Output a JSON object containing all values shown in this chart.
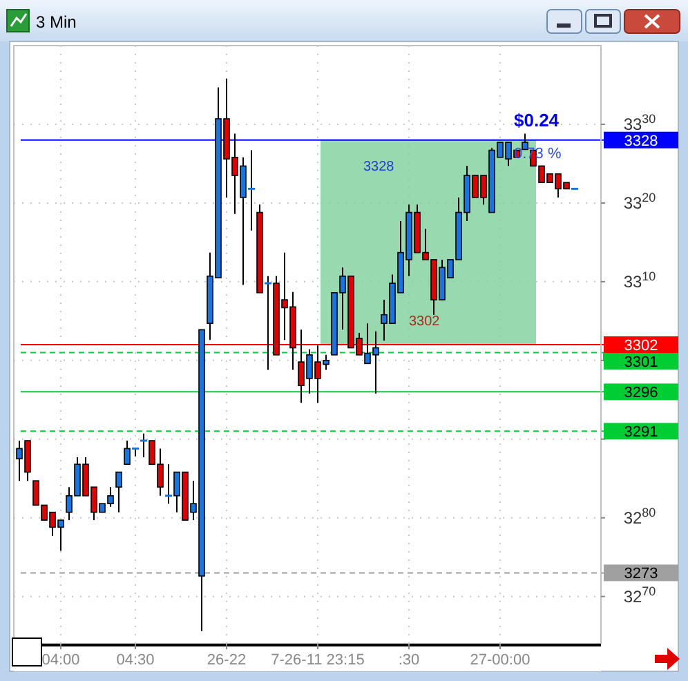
{
  "chart_data": {
    "type": "candlestick",
    "title": "3 Min",
    "categories": [
      null,
      null,
      null,
      null,
      null,
      "04:00",
      null,
      null,
      null,
      null,
      null,
      null,
      null,
      null,
      "04:30",
      null,
      null,
      null,
      null,
      null,
      null,
      null,
      null,
      null,
      null,
      "26-22",
      null,
      null,
      null,
      null,
      null,
      null,
      null,
      null,
      null,
      null,
      "7-26-11 23:15",
      null,
      null,
      null,
      null,
      null,
      null,
      null,
      null,
      null,
      null,
      ":30",
      null,
      null,
      null,
      null,
      null,
      null,
      null,
      null,
      null,
      null,
      "27-00:00",
      null,
      null,
      null,
      null,
      null,
      null,
      null,
      null,
      null
    ],
    "ohlc": [
      [
        3287.5,
        3289.8,
        3284.7,
        3288.8
      ],
      [
        3289.8,
        3289.8,
        3284.7,
        3285.8
      ],
      [
        3284.7,
        3284.7,
        3281.6,
        3281.6
      ],
      [
        3281.6,
        3281.6,
        3279.7,
        3279.7
      ],
      [
        3280.7,
        3280.7,
        3277.7,
        3278.8
      ],
      [
        3278.8,
        3279.7,
        3275.8,
        3279.7
      ],
      [
        3280.7,
        3283.9,
        3279.7,
        3282.8
      ],
      [
        3282.8,
        3287.7,
        3282.8,
        3286.8
      ],
      [
        3286.8,
        3287.7,
        3282.8,
        3282.8
      ],
      [
        3283.9,
        3283.9,
        3279.7,
        3280.7
      ],
      [
        3280.7,
        3281.8,
        3280.7,
        3281.8
      ],
      [
        3281.8,
        3283.9,
        3281.4,
        3282.8
      ],
      [
        3283.9,
        3285.8,
        3280.7,
        3285.8
      ],
      [
        3286.8,
        3289.8,
        3286.8,
        3288.8
      ],
      [
        3288.7,
        3288.8,
        3287.8,
        3288.8
      ],
      [
        3289.8,
        3290.7,
        3287.7,
        3289.8
      ],
      [
        3289.8,
        3289.8,
        3286.8,
        3286.8
      ],
      [
        3286.8,
        3288.8,
        3282.8,
        3283.9
      ],
      [
        3282.8,
        3286.8,
        3281.8,
        3282.8
      ],
      [
        3282.8,
        3285.8,
        3280.7,
        3285.8
      ],
      [
        3285.8,
        3285.8,
        3279.7,
        3279.7
      ],
      [
        3280.7,
        3284.7,
        3279.7,
        3281.8
      ],
      [
        3272.6,
        3303.9,
        3265.6,
        3303.9
      ],
      [
        3304.7,
        3313.7,
        3302.6,
        3310.7
      ],
      [
        3310.5,
        3334.7,
        3310.5,
        3330.7
      ],
      [
        3330.7,
        3335.8,
        3320.7,
        3325.6
      ],
      [
        3325.8,
        3328.8,
        3318.6,
        3323.5
      ],
      [
        3320.7,
        3325.8,
        3309.6,
        3324.7
      ],
      [
        3321.8,
        3326.7,
        3316.5,
        3321.8
      ],
      [
        3318.8,
        3319.8,
        3308.6,
        3308.6
      ],
      [
        3309.8,
        3310.7,
        3298.8,
        3309.8
      ],
      [
        3309.8,
        3310.7,
        3300.7,
        3300.7
      ],
      [
        3307.7,
        3313.7,
        3302.6,
        3306.7
      ],
      [
        3306.8,
        3308.7,
        3298.8,
        3301.6
      ],
      [
        3299.8,
        3303.9,
        3294.6,
        3296.8
      ],
      [
        3297.7,
        3301.4,
        3295.8,
        3300.7
      ],
      [
        3299.8,
        3301.9,
        3294.6,
        3297.7
      ],
      [
        3299.5,
        3300.7,
        3298.8,
        3300.0
      ],
      [
        3300.7,
        3308.6,
        3300.7,
        3308.6
      ],
      [
        3308.6,
        3311.8,
        3303.9,
        3310.7
      ],
      [
        3310.7,
        3310.7,
        3301.6,
        3301.6
      ],
      [
        3302.8,
        3303.5,
        3300.7,
        3300.7
      ],
      [
        3299.6,
        3304.7,
        3299.6,
        3300.9
      ],
      [
        3300.7,
        3303.7,
        3295.8,
        3301.6
      ],
      [
        3304.7,
        3307.7,
        3302.5,
        3305.8
      ],
      [
        3304.7,
        3310.9,
        3304.7,
        3309.8
      ],
      [
        3308.6,
        3317.7,
        3308.6,
        3313.7
      ],
      [
        3312.8,
        3319.8,
        3310.7,
        3318.8
      ],
      [
        3318.8,
        3319.8,
        3313.7,
        3313.7
      ],
      [
        3313.7,
        3316.7,
        3312.8,
        3312.8
      ],
      [
        3312.8,
        3312.8,
        3305.8,
        3307.7
      ],
      [
        3307.7,
        3312.8,
        3307.7,
        3311.8
      ],
      [
        3310.5,
        3312.8,
        3310.5,
        3312.8
      ],
      [
        3312.8,
        3320.7,
        3312.8,
        3318.8
      ],
      [
        3318.8,
        3324.7,
        3317.7,
        3323.5
      ],
      [
        3323.5,
        3323.5,
        3320.7,
        3320.7
      ],
      [
        3323.5,
        3323.5,
        3319.8,
        3320.7
      ],
      [
        3318.8,
        3327.0,
        3318.8,
        3326.7
      ],
      [
        3325.8,
        3327.7,
        3325.8,
        3327.7
      ],
      [
        3325.6,
        3327.7,
        3324.7,
        3327.7
      ],
      [
        3326.7,
        3326.7,
        3325.8,
        3325.8
      ],
      [
        3326.8,
        3328.8,
        3326.8,
        3327.7
      ],
      [
        3326.7,
        3326.7,
        3324.7,
        3324.7
      ],
      [
        3324.7,
        3324.7,
        3322.6,
        3322.6
      ],
      [
        3323.7,
        3323.7,
        3322.6,
        3322.6
      ],
      [
        3323.7,
        3323.7,
        3320.7,
        3321.8
      ],
      [
        3322.6,
        3322.6,
        3321.8,
        3321.8
      ],
      [
        3321.8,
        3321.8,
        3321.8,
        3321.8
      ]
    ],
    "colors": [
      "#1874e0",
      "#e00000",
      "#e00000",
      "#e00000",
      "#e00000",
      "#1874e0",
      "#1874e0",
      "#1874e0",
      "#e00000",
      "#e00000",
      "#1874e0",
      "#1874e0",
      "#1874e0",
      "#1874e0",
      "#1874e0",
      "#1874e0",
      "#e00000",
      "#e00000",
      "#1874e0",
      "#1874e0",
      "#e00000",
      "#1874e0",
      "#1874e0",
      "#1874e0",
      "#1874e0",
      "#e00000",
      "#e00000",
      "#1874e0",
      "#1874e0",
      "#e00000",
      "#1874e0",
      "#e00000",
      "#e00000",
      "#e00000",
      "#e00000",
      "#1874e0",
      "#e00000",
      "#1874e0",
      "#1874e0",
      "#1874e0",
      "#e00000",
      "#e00000",
      "#1874e0",
      "#1874e0",
      "#1874e0",
      "#1874e0",
      "#1874e0",
      "#1874e0",
      "#e00000",
      "#e00000",
      "#e00000",
      "#1874e0",
      "#1874e0",
      "#1874e0",
      "#1874e0",
      "#e00000",
      "#e00000",
      "#1874e0",
      "#1874e0",
      "#1874e0",
      "#e00000",
      "#1874e0",
      "#e00000",
      "#e00000",
      "#e00000",
      "#e00000",
      "#e00000",
      "#1874e0"
    ],
    "ylim": [
      3264,
      3340
    ],
    "yticks": [
      3330,
      3320,
      3310,
      {
        "value": 3300,
        "label": null
      },
      {
        "value": 3290,
        "label": null
      },
      3280,
      3270
    ],
    "grid": true,
    "ref_lines": [
      {
        "axis": "y",
        "value": 3328,
        "label": "3328",
        "color": "#0000ff",
        "line_style": "solid"
      },
      {
        "axis": "y",
        "value": 3302,
        "label": "3302",
        "color": "#ff0000",
        "line_style": "solid"
      },
      {
        "axis": "y",
        "value": 3301,
        "label": "3301",
        "color": "#00cc33",
        "line_style": "dashed"
      },
      {
        "axis": "y",
        "value": 3296,
        "label": "3296",
        "color": "#00cc33",
        "line_style": "solid"
      },
      {
        "axis": "y",
        "value": 3291,
        "label": "3291",
        "color": "#00cc33",
        "line_style": "dashed"
      },
      {
        "axis": "y",
        "value": 3273,
        "label": "3273",
        "color": "#a0a0a0",
        "line_style": "dashed"
      }
    ],
    "bands": [
      {
        "axis": "y",
        "from": 3302,
        "to": 3328,
        "color": "#7fcf9c"
      }
    ],
    "annotations": [
      "$0.24",
      "0.73 %",
      "3328",
      "3302"
    ]
  }
}
